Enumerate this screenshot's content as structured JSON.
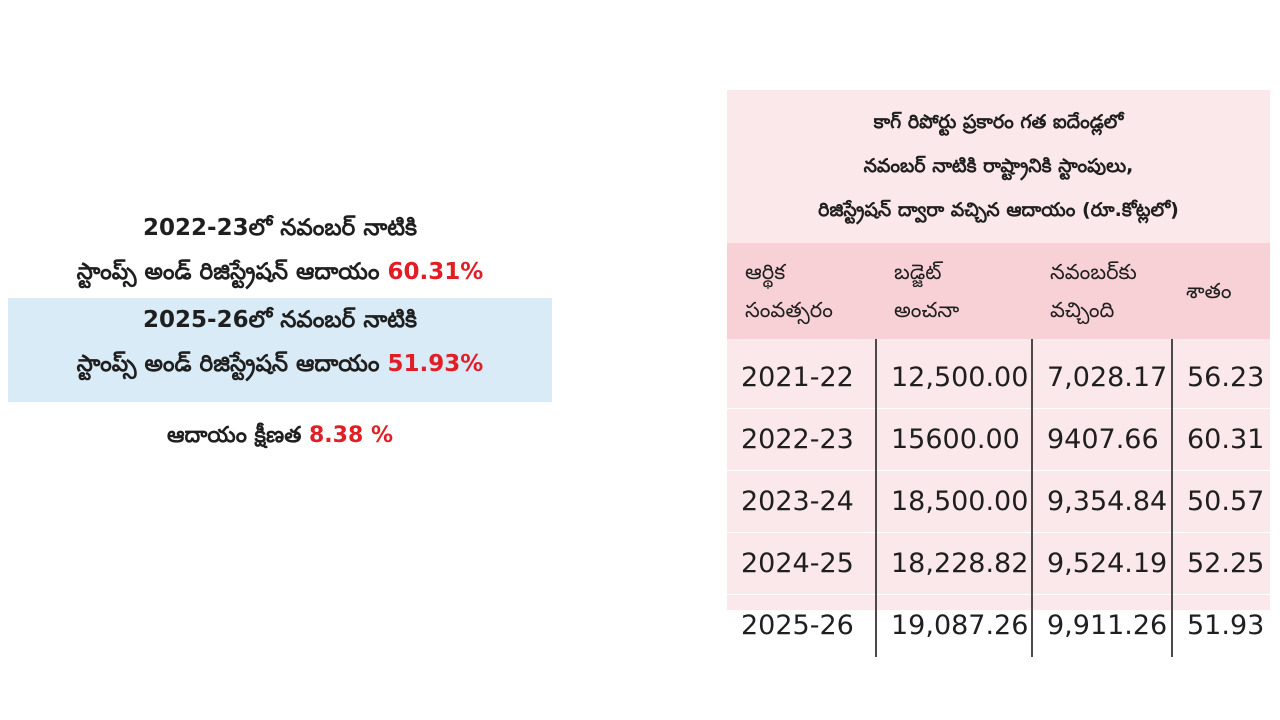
{
  "summary": {
    "line1_a": "2022-23లో నవంబర్ నాటికి",
    "line1_b": "స్టాంప్స్ అండ్ రిజిస్ట్రేషన్ ఆదాయం",
    "line1_value": "60.31%",
    "line2_a": "2025-26లో నవంబర్ నాటికి",
    "line2_b": "స్టాంప్స్ అండ్ రిజిస్ట్రేషన్ ఆదాయం",
    "line2_value": "51.93%",
    "decline_label": "ఆదాయం క్షీణత",
    "decline_value": "8.38 %"
  },
  "table": {
    "title_1": "కాగ్ రిపోర్టు ప్రకారం గత ఐదేండ్లలో",
    "title_2": "నవంబర్ నాటికి రాష్ట్రానికి స్టాంపులు,",
    "title_3": "రిజిస్ట్రేషన్ ద్వారా వచ్చిన ఆదాయం (రూ.కోట్లలో)",
    "headers": [
      {
        "l1": "ఆర్థిక",
        "l2": "సంవత్సరం"
      },
      {
        "l1": "బడ్జెట్",
        "l2": "అంచనా"
      },
      {
        "l1": "నవంబర్‌కు",
        "l2": "వచ్చింది"
      },
      {
        "l1": "శాతం",
        "l2": ""
      }
    ],
    "rows": [
      [
        "2021-22",
        "12,500.00",
        "7,028.17",
        "56.23"
      ],
      [
        "2022-23",
        "15600.00",
        "9407.66",
        "60.31"
      ],
      [
        "2023-24",
        "18,500.00",
        "9,354.84",
        "50.57"
      ],
      [
        "2024-25",
        "18,228.82",
        "9,524.19",
        "52.25"
      ],
      [
        "2025-26",
        "19,087.26",
        "9,911.26",
        "51.93"
      ]
    ]
  },
  "colors": {
    "accent_red": "#e11e26",
    "panel_bg": "#fbe8ea",
    "header_bg": "#f7d1d6",
    "highlight_blue": "#d9ebf6"
  }
}
